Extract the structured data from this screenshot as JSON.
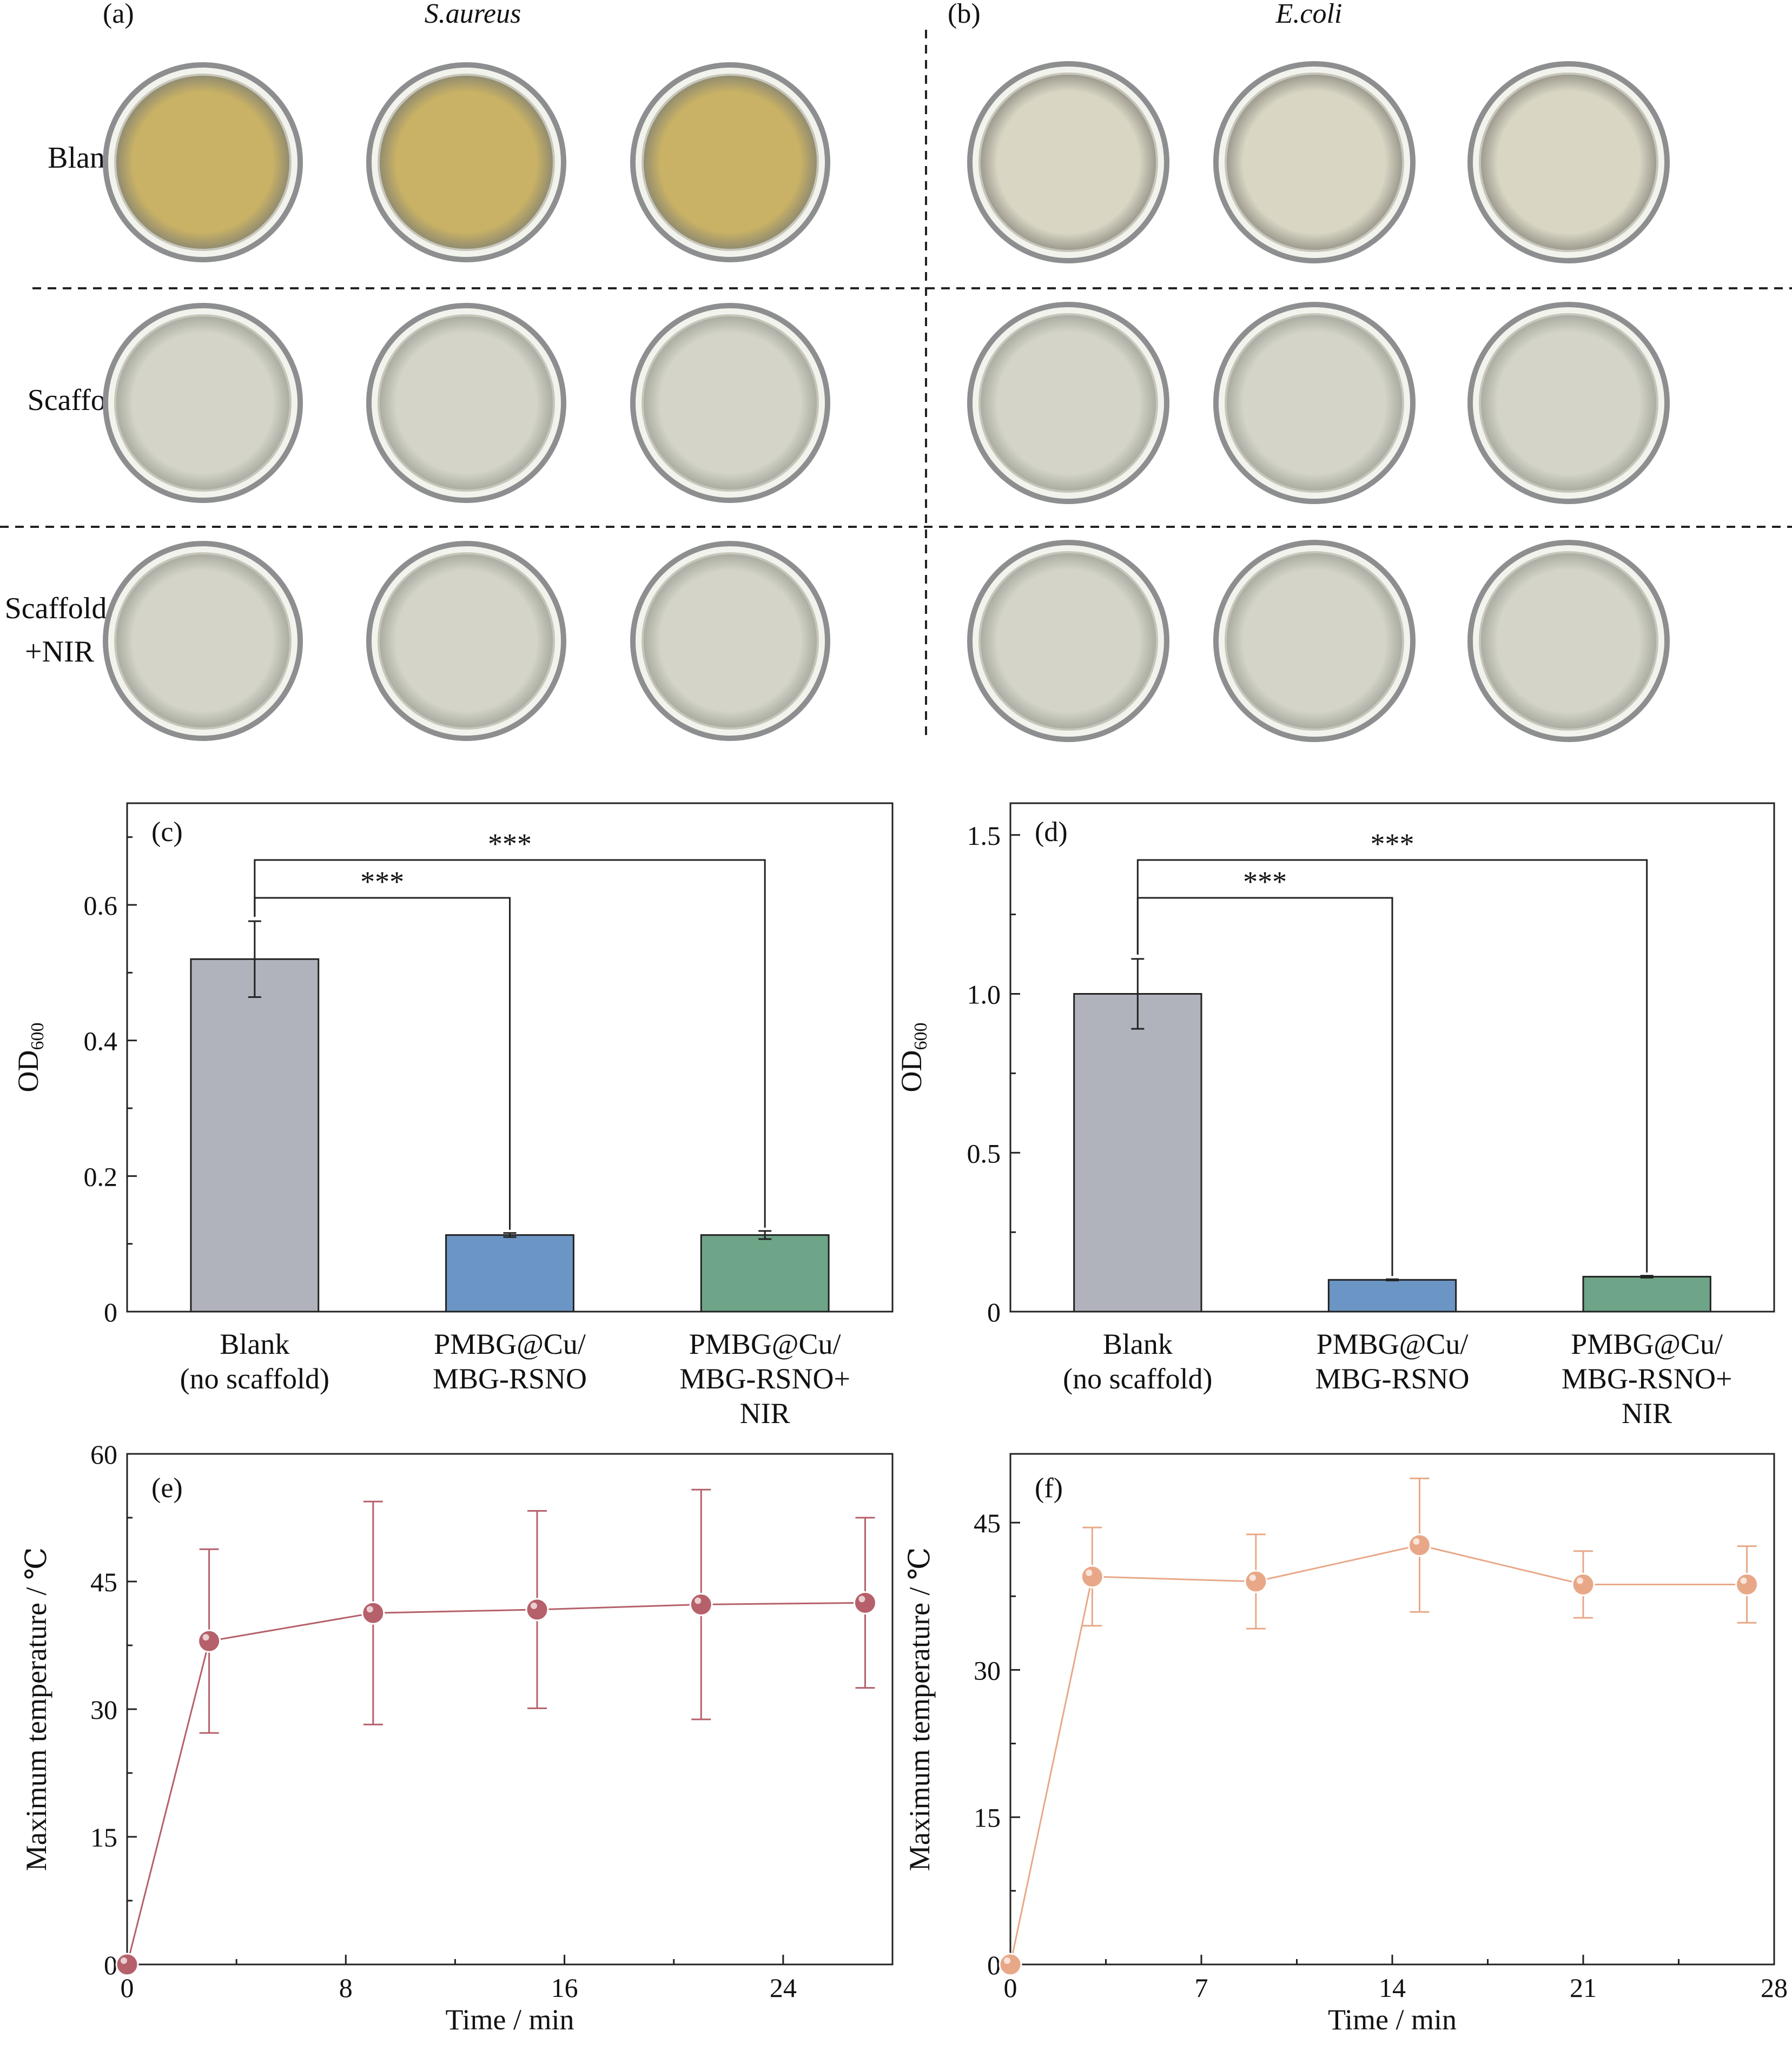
{
  "photo_grid": {
    "panel_a_label": "(a)",
    "panel_b_label": "(b)",
    "panel_a_title": "S.aureus",
    "panel_b_title": "E.coli",
    "rows": [
      {
        "label_lines": [
          "Blank"
        ]
      },
      {
        "label_lines": [
          "Scaffold"
        ]
      },
      {
        "label_lines": [
          "Scaffold",
          "+NIR"
        ]
      }
    ],
    "colors": {
      "saureus_blank_colony": "#c9b266",
      "ecoli_blank_colony": "#d9d6c4",
      "clear_agar": "#d4d5c8",
      "dish_rim": "#8d8e8f"
    }
  },
  "chart_data": [
    {
      "panel": "(c)",
      "type": "bar",
      "categories": [
        [
          "Blank",
          "(no scaffold)"
        ],
        [
          "PMBG@Cu/",
          "MBG-RSNO"
        ],
        [
          "PMBG@Cu/",
          "MBG-RSNO+",
          "NIR"
        ]
      ],
      "values": [
        0.52,
        0.113,
        0.113
      ],
      "errors": [
        0.056,
        0.003,
        0.006
      ],
      "colors": [
        "#b0b3bb",
        "#6b95c4",
        "#6ea487"
      ],
      "ylabel": "OD",
      "ylabel_sub": "600",
      "ylim": [
        0,
        0.75
      ],
      "yticks": [
        0,
        0.2,
        0.4,
        0.6
      ],
      "ytick_labels": [
        "0",
        "0.2",
        "0.4",
        "0.6"
      ],
      "significance": [
        {
          "from": 0,
          "to": 1,
          "label": "***"
        },
        {
          "from": 0,
          "to": 2,
          "label": "***"
        }
      ]
    },
    {
      "panel": "(d)",
      "type": "bar",
      "categories": [
        [
          "Blank",
          "(no scaffold)"
        ],
        [
          "PMBG@Cu/",
          "MBG-RSNO"
        ],
        [
          "PMBG@Cu/",
          "MBG-RSNO+",
          "NIR"
        ]
      ],
      "values": [
        1.0,
        0.1,
        0.11
      ],
      "errors": [
        0.11,
        0.002,
        0.003
      ],
      "colors": [
        "#b0b3bb",
        "#6b95c4",
        "#6ea487"
      ],
      "ylabel": "OD",
      "ylabel_sub": "600",
      "ylim": [
        0,
        1.6
      ],
      "yticks": [
        0,
        0.5,
        1.0,
        1.5
      ],
      "ytick_labels": [
        "0",
        "0.5",
        "1.0",
        "1.5"
      ],
      "significance": [
        {
          "from": 0,
          "to": 1,
          "label": "***"
        },
        {
          "from": 0,
          "to": 2,
          "label": "***"
        }
      ]
    },
    {
      "panel": "(e)",
      "type": "line",
      "x": [
        0,
        3,
        9,
        15,
        21,
        27
      ],
      "y": [
        0,
        38,
        41.3,
        41.7,
        42.3,
        42.5
      ],
      "errors": [
        0,
        10.8,
        13.1,
        11.6,
        13.5,
        10
      ],
      "color": "#b5606a",
      "xlabel": "Time / min",
      "ylabel": "Maximum temperature / ℃",
      "xlim": [
        0,
        28
      ],
      "ylim": [
        0,
        60
      ],
      "xticks": [
        0,
        8,
        16,
        24
      ],
      "yticks": [
        0,
        15,
        30,
        45,
        60
      ],
      "xtick_labels": [
        "0",
        "8",
        "16",
        "24"
      ],
      "ytick_labels": [
        "0",
        "15",
        "30",
        "45",
        "60"
      ]
    },
    {
      "panel": "(f)",
      "type": "line",
      "x": [
        0,
        3,
        9,
        15,
        21,
        27
      ],
      "y": [
        0,
        39.5,
        39,
        42.7,
        38.7,
        38.7
      ],
      "errors": [
        0,
        5,
        4.8,
        6.8,
        3.4,
        3.9
      ],
      "color": "#e8a888",
      "xlabel": "Time / min",
      "ylabel": "Maximum temperature / ℃",
      "xlim": [
        0,
        28
      ],
      "ylim": [
        0,
        52
      ],
      "xticks": [
        0,
        7,
        14,
        21,
        28
      ],
      "yticks": [
        0,
        15,
        30,
        45
      ],
      "xtick_labels": [
        "0",
        "7",
        "14",
        "21",
        "28"
      ],
      "ytick_labels": [
        "0",
        "15",
        "30",
        "45"
      ]
    }
  ]
}
